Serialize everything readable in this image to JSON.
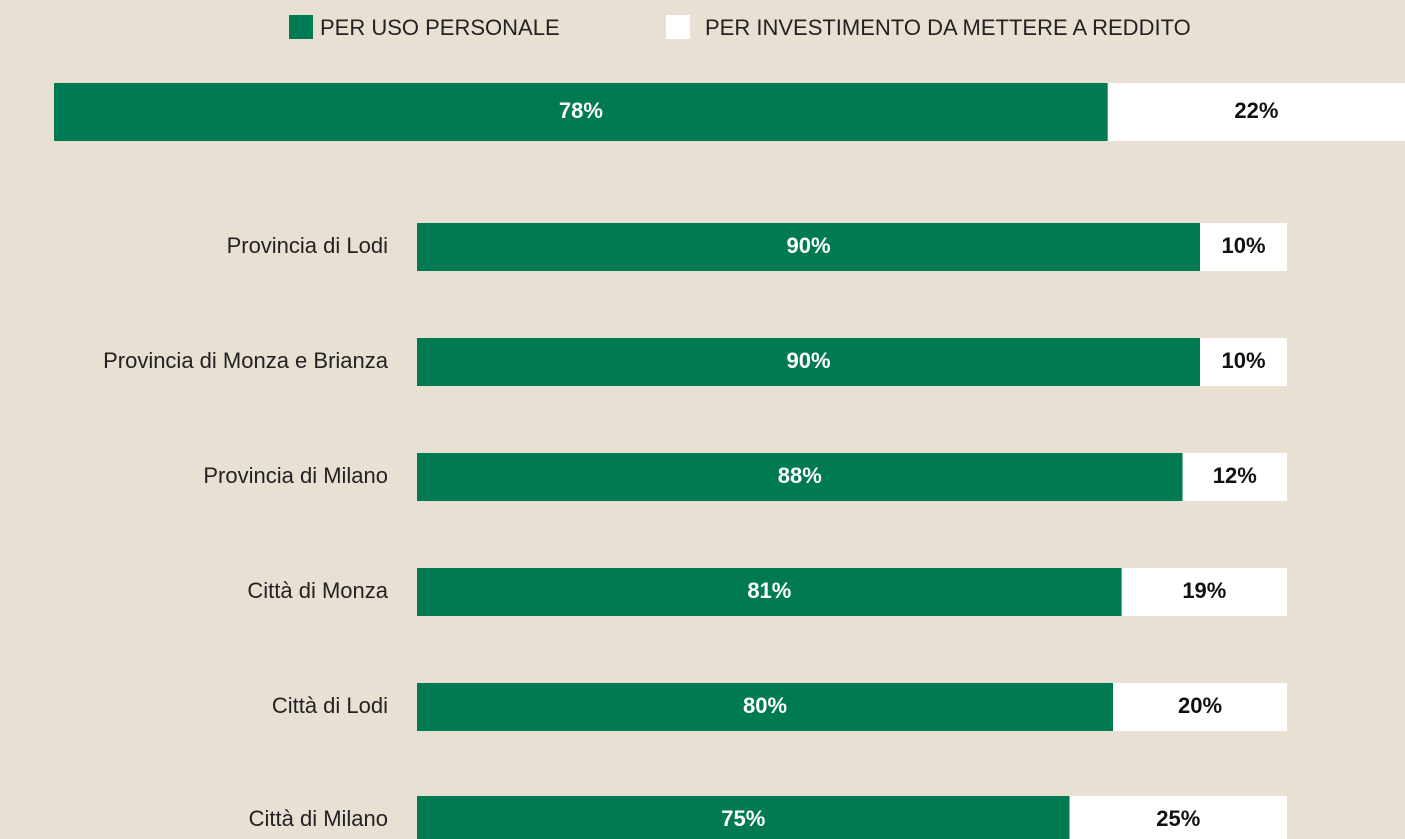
{
  "chart_data": {
    "type": "bar",
    "orientation": "horizontal",
    "stacked": true,
    "categories": [
      null,
      "Provincia di Lodi",
      "Provincia di Monza e Brianza",
      "Provincia di Milano",
      "Città di Monza",
      "Città di Lodi",
      "Città di Milano"
    ],
    "series": [
      {
        "name": "PER USO PERSONALE",
        "color": "#007a53",
        "values": [
          78,
          90,
          90,
          88,
          81,
          80,
          75
        ],
        "value_labels": [
          "78%",
          "90%",
          "90%",
          "88%",
          "81%",
          "80%",
          "75%"
        ]
      },
      {
        "name": "PER INVESTIMENTO DA METTERE A REDDITO",
        "color": "#ffffff",
        "values": [
          22,
          10,
          10,
          12,
          19,
          20,
          25
        ],
        "value_labels": [
          "22%",
          "10%",
          "10%",
          "12%",
          "19%",
          "20%",
          "25%"
        ]
      }
    ],
    "legend": "top"
  }
}
